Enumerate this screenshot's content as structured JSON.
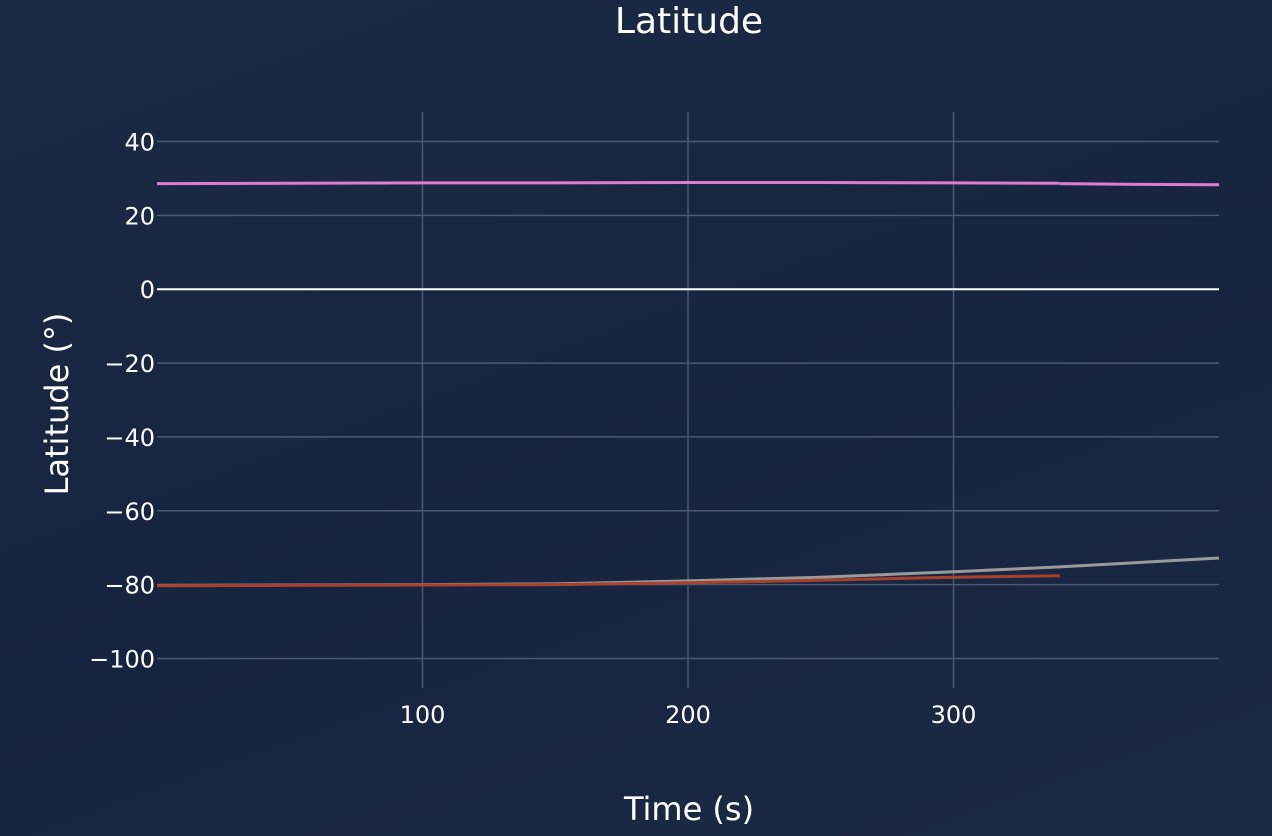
{
  "chart_data": {
    "type": "line",
    "title": "Latitude",
    "xlabel": "Time (s)",
    "ylabel": "Latitude (°)",
    "xlim": [
      0,
      400
    ],
    "ylim": [
      -108,
      48
    ],
    "xticks": [
      100,
      200,
      300
    ],
    "yticks": [
      40,
      20,
      0,
      -20,
      -40,
      -60,
      -80,
      -100
    ],
    "ytick_labels": [
      "40",
      "20",
      "0",
      "−20",
      "−40",
      "−60",
      "−80",
      "−100"
    ],
    "grid": true,
    "series": [
      {
        "color": "#e07cd0",
        "x": [
          0,
          50,
          100,
          150,
          200,
          250,
          300,
          340
        ],
        "y": [
          28.6,
          28.7,
          28.8,
          28.8,
          28.9,
          28.9,
          28.8,
          28.7
        ]
      },
      {
        "color": "#9a9a9a",
        "x": [
          0,
          50,
          100,
          150,
          200,
          250,
          300,
          340,
          400
        ],
        "y": [
          -80.2,
          -80.1,
          -80.0,
          -79.8,
          -79.0,
          -78.0,
          -76.5,
          -75.2,
          -72.8
        ]
      },
      {
        "color": "#a8402c",
        "x": [
          0,
          50,
          100,
          150,
          200,
          250,
          300,
          340
        ],
        "y": [
          -80.3,
          -80.2,
          -80.1,
          -80.0,
          -79.5,
          -78.8,
          -78.0,
          -77.6
        ]
      },
      {
        "color": "#e07cd0",
        "x": [
          340,
          370,
          400
        ],
        "y": [
          28.6,
          28.4,
          28.3
        ]
      }
    ]
  }
}
